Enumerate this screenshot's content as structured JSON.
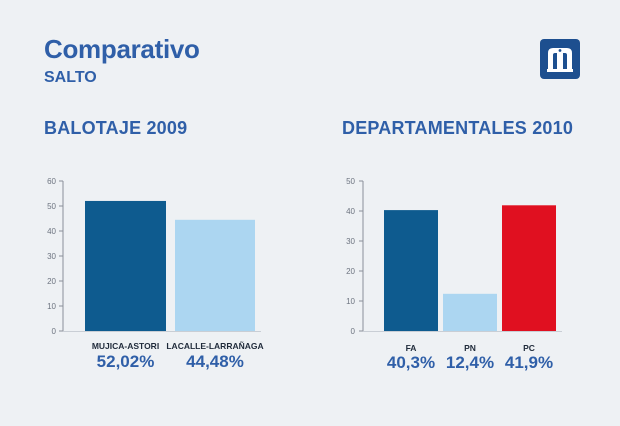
{
  "header": {
    "title": "Comparativo",
    "subtitle": "SALTO",
    "logo_icon": "building-logo-icon"
  },
  "colors": {
    "title": "#2f5fa8",
    "background": "#eef1f4"
  },
  "chart_data": [
    {
      "type": "bar",
      "title": "BALOTAJE 2009",
      "categories": [
        "MUJICA-ASTORI",
        "LACALLE-LARRAÑAGA"
      ],
      "values": [
        52.02,
        44.48
      ],
      "value_labels": [
        "52,02%",
        "44,48%"
      ],
      "colors": [
        "#0e5b8f",
        "#acd6f1"
      ],
      "ylim": [
        0,
        60
      ],
      "yticks": [
        0,
        10,
        20,
        30,
        40,
        50,
        60
      ],
      "xlabel": "",
      "ylabel": ""
    },
    {
      "type": "bar",
      "title": "DEPARTAMENTALES 2010",
      "categories": [
        "FA",
        "PN",
        "PC"
      ],
      "values": [
        40.3,
        12.4,
        41.9
      ],
      "value_labels": [
        "40,3%",
        "12,4%",
        "41,9%"
      ],
      "colors": [
        "#0e5b8f",
        "#acd6f1",
        "#e01020"
      ],
      "ylim": [
        0,
        50
      ],
      "yticks": [
        0,
        10,
        20,
        30,
        40,
        50
      ],
      "xlabel": "",
      "ylabel": ""
    }
  ]
}
